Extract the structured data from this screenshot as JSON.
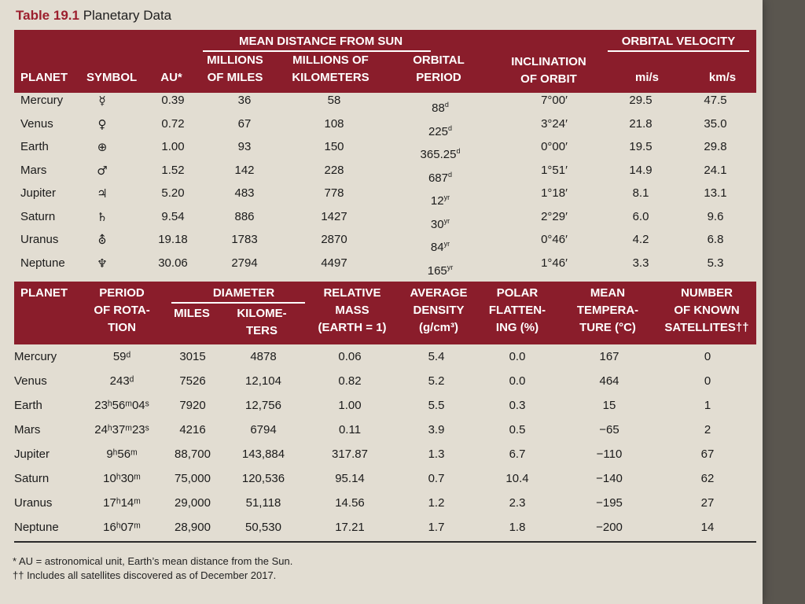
{
  "caption": {
    "label": "Table 19.1",
    "title": "Planetary Data"
  },
  "table1": {
    "group_headers": {
      "distance": "MEAN DISTANCE FROM SUN",
      "velocity": "ORBITAL VELOCITY"
    },
    "headers": {
      "planet": "PLANET",
      "symbol": "SYMBOL",
      "au": "AU*",
      "miles": "MILLIONS\nOF MILES",
      "km": "MILLIONS OF\nKILOMETERS",
      "period": "ORBITAL\nPERIOD",
      "inclination": "INCLINATION\nOF ORBIT",
      "mis": "mi/s",
      "kms": "km/s"
    },
    "rows": [
      {
        "planet": "Mercury",
        "symbol": "☿",
        "au": "0.39",
        "miles": "36",
        "km": "58",
        "period": "88",
        "period_unit": "d",
        "inclination": "7°00′",
        "mis": "29.5",
        "kms": "47.5"
      },
      {
        "planet": "Venus",
        "symbol": "♀",
        "au": "0.72",
        "miles": "67",
        "km": "108",
        "period": "225",
        "period_unit": "d",
        "inclination": "3°24′",
        "mis": "21.8",
        "kms": "35.0"
      },
      {
        "planet": "Earth",
        "symbol": "⊕",
        "au": "1.00",
        "miles": "93",
        "km": "150",
        "period": "365.25",
        "period_unit": "d",
        "inclination": "0°00′",
        "mis": "19.5",
        "kms": "29.8"
      },
      {
        "planet": "Mars",
        "symbol": "♂",
        "au": "1.52",
        "miles": "142",
        "km": "228",
        "period": "687",
        "period_unit": "d",
        "inclination": "1°51′",
        "mis": "14.9",
        "kms": "24.1"
      },
      {
        "planet": "Jupiter",
        "symbol": "♃",
        "au": "5.20",
        "miles": "483",
        "km": "778",
        "period": "12",
        "period_unit": "yr",
        "inclination": "1°18′",
        "mis": "8.1",
        "kms": "13.1"
      },
      {
        "planet": "Saturn",
        "symbol": "♄",
        "au": "9.54",
        "miles": "886",
        "km": "1427",
        "period": "30",
        "period_unit": "yr",
        "inclination": "2°29′",
        "mis": "6.0",
        "kms": "9.6"
      },
      {
        "planet": "Uranus",
        "symbol": "⛢",
        "au": "19.18",
        "miles": "1783",
        "km": "2870",
        "period": "84",
        "period_unit": "yr",
        "inclination": "0°46′",
        "mis": "4.2",
        "kms": "6.8"
      },
      {
        "planet": "Neptune",
        "symbol": "♆",
        "au": "30.06",
        "miles": "2794",
        "km": "4497",
        "period": "165",
        "period_unit": "yr",
        "inclination": "1°46′",
        "mis": "3.3",
        "kms": "5.3"
      }
    ]
  },
  "table2": {
    "group_headers": {
      "diameter": "DIAMETER"
    },
    "headers": {
      "planet": "PLANET",
      "rotation": "PERIOD\nOF ROTA-\nTION",
      "miles": "MILES",
      "km": "KILOME-\nTERS",
      "mass": "RELATIVE\nMASS\n(EARTH = 1)",
      "density": "AVERAGE\nDENSITY\n(g/cm³)",
      "flattening": "POLAR\nFLATTEN-\nING (%)",
      "temperature": "MEAN\nTEMPERA-\nTURE (°C)",
      "satellites": "NUMBER\nOF KNOWN\nSATELLITES††"
    },
    "rows": [
      {
        "planet": "Mercury",
        "rotation": "59ᵈ",
        "miles": "3015",
        "km": "4878",
        "mass": "0.06",
        "density": "5.4",
        "flattening": "0.0",
        "temperature": "167",
        "satellites": "0"
      },
      {
        "planet": "Venus",
        "rotation": "243ᵈ",
        "miles": "7526",
        "km": "12,104",
        "mass": "0.82",
        "density": "5.2",
        "flattening": "0.0",
        "temperature": "464",
        "satellites": "0"
      },
      {
        "planet": "Earth",
        "rotation": "23ʰ56ᵐ04ˢ",
        "miles": "7920",
        "km": "12,756",
        "mass": "1.00",
        "density": "5.5",
        "flattening": "0.3",
        "temperature": "15",
        "satellites": "1"
      },
      {
        "planet": "Mars",
        "rotation": "24ʰ37ᵐ23ˢ",
        "miles": "4216",
        "km": "6794",
        "mass": "0.11",
        "density": "3.9",
        "flattening": "0.5",
        "temperature": "−65",
        "satellites": "2"
      },
      {
        "planet": "Jupiter",
        "rotation": "9ʰ56ᵐ",
        "miles": "88,700",
        "km": "143,884",
        "mass": "317.87",
        "density": "1.3",
        "flattening": "6.7",
        "temperature": "−110",
        "satellites": "67"
      },
      {
        "planet": "Saturn",
        "rotation": "10ʰ30ᵐ",
        "miles": "75,000",
        "km": "120,536",
        "mass": "95.14",
        "density": "0.7",
        "flattening": "10.4",
        "temperature": "−140",
        "satellites": "62"
      },
      {
        "planet": "Uranus",
        "rotation": "17ʰ14ᵐ",
        "miles": "29,000",
        "km": "51,118",
        "mass": "14.56",
        "density": "1.2",
        "flattening": "2.3",
        "temperature": "−195",
        "satellites": "27"
      },
      {
        "planet": "Neptune",
        "rotation": "16ʰ07ᵐ",
        "miles": "28,900",
        "km": "50,530",
        "mass": "17.21",
        "density": "1.7",
        "flattening": "1.8",
        "temperature": "−200",
        "satellites": "14"
      }
    ]
  },
  "footnotes": {
    "au": "* AU = astronomical unit, Earth’s mean distance from the Sun.",
    "satellites": "†† Includes all satellites discovered as of December 2017."
  }
}
